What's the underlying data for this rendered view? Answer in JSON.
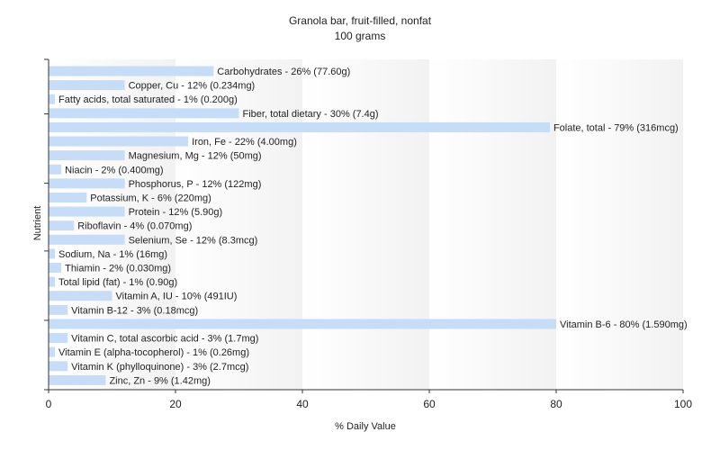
{
  "chart_data": {
    "type": "bar",
    "orientation": "horizontal",
    "title": "Granola bar, fruit-filled, nonfat",
    "subtitle": "100 grams",
    "xlabel": "% Daily Value",
    "ylabel": "Nutrient",
    "xlim": [
      0,
      100
    ],
    "xticks": [
      0,
      20,
      40,
      60,
      80,
      100
    ],
    "grid": "vertical bands",
    "bar_color": "#c6dcf7",
    "categories": [
      "Carbohydrates",
      "Copper, Cu",
      "Fatty acids, total saturated",
      "Fiber, total dietary",
      "Folate, total",
      "Iron, Fe",
      "Magnesium, Mg",
      "Niacin",
      "Phosphorus, P",
      "Potassium, K",
      "Protein",
      "Riboflavin",
      "Selenium, Se",
      "Sodium, Na",
      "Thiamin",
      "Total lipid (fat)",
      "Vitamin A, IU",
      "Vitamin B-12",
      "Vitamin B-6",
      "Vitamin C, total ascorbic acid",
      "Vitamin E (alpha-tocopherol)",
      "Vitamin K (phylloquinone)",
      "Zinc, Zn"
    ],
    "values": [
      26,
      12,
      1,
      30,
      79,
      22,
      12,
      2,
      12,
      6,
      12,
      4,
      12,
      1,
      2,
      1,
      10,
      3,
      80,
      3,
      1,
      3,
      9
    ],
    "labels": [
      "Carbohydrates - 26% (77.60g)",
      "Copper, Cu - 12% (0.234mg)",
      "Fatty acids, total saturated - 1% (0.200g)",
      "Fiber, total dietary - 30% (7.4g)",
      "Folate, total - 79% (316mcg)",
      "Iron, Fe - 22% (4.00mg)",
      "Magnesium, Mg - 12% (50mg)",
      "Niacin - 2% (0.400mg)",
      "Phosphorus, P - 12% (122mg)",
      "Potassium, K - 6% (220mg)",
      "Protein - 12% (5.90g)",
      "Riboflavin - 4% (0.070mg)",
      "Selenium, Se - 12% (8.3mcg)",
      "Sodium, Na - 1% (16mg)",
      "Thiamin - 2% (0.030mg)",
      "Total lipid (fat) - 1% (0.90g)",
      "Vitamin A, IU - 10% (491IU)",
      "Vitamin B-12 - 3% (0.18mcg)",
      "Vitamin B-6 - 80% (1.590mg)",
      "Vitamin C, total ascorbic acid - 3% (1.7mg)",
      "Vitamin E (alpha-tocopherol) - 1% (0.26mg)",
      "Vitamin K (phylloquinone) - 3% (2.7mcg)",
      "Zinc, Zn - 9% (1.42mg)"
    ]
  }
}
